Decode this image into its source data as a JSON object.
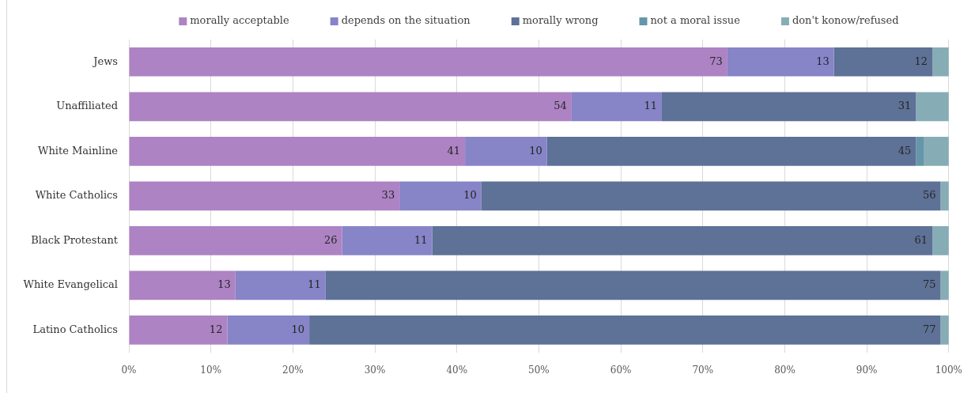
{
  "chart_data": {
    "type": "bar",
    "orientation": "horizontal",
    "stacked": true,
    "categories": [
      "Jews",
      "Unaffiliated",
      "White Mainline",
      "White Catholics",
      "Black Protestant",
      "White Evangelical",
      "Latino Catholics"
    ],
    "series": [
      {
        "name": "morally acceptable",
        "color": "#ad83c4",
        "values": [
          73,
          54,
          41,
          33,
          26,
          13,
          12
        ],
        "value_labels": [
          "73",
          "54",
          "41",
          "33",
          "26",
          "13",
          "12"
        ]
      },
      {
        "name": "depends on the situation",
        "color": "#8784c7",
        "values": [
          13,
          11,
          10,
          10,
          11,
          11,
          10
        ],
        "value_labels": [
          "13",
          "11",
          "10",
          "10",
          "11",
          "11",
          "10"
        ]
      },
      {
        "name": "morally wrong",
        "color": "#5e7196",
        "values": [
          12,
          31,
          45,
          56,
          61,
          75,
          77
        ],
        "value_labels": [
          "12",
          "31",
          "45",
          "56",
          "61",
          "75",
          "77"
        ]
      },
      {
        "name": "not a moral issue",
        "color": "#6596a9",
        "values": [
          0,
          0,
          1,
          0,
          0,
          0,
          0
        ]
      },
      {
        "name": "don't konow/refused",
        "color": "#86adb6",
        "values": [
          2,
          4,
          3,
          1,
          2,
          1,
          1
        ]
      }
    ],
    "xlim": [
      0,
      100
    ],
    "xticks": [
      {
        "value": 0,
        "label": "0%"
      },
      {
        "value": 10,
        "label": "10%"
      },
      {
        "value": 20,
        "label": "20%"
      },
      {
        "value": 30,
        "label": "30%"
      },
      {
        "value": 40,
        "label": "40%"
      },
      {
        "value": 50,
        "label": "50%"
      },
      {
        "value": 60,
        "label": "60%"
      },
      {
        "value": 70,
        "label": "70%"
      },
      {
        "value": 80,
        "label": "80%"
      },
      {
        "value": 90,
        "label": "90%"
      },
      {
        "value": 100,
        "label": "100%"
      }
    ],
    "grid": "x",
    "legend": "top"
  }
}
